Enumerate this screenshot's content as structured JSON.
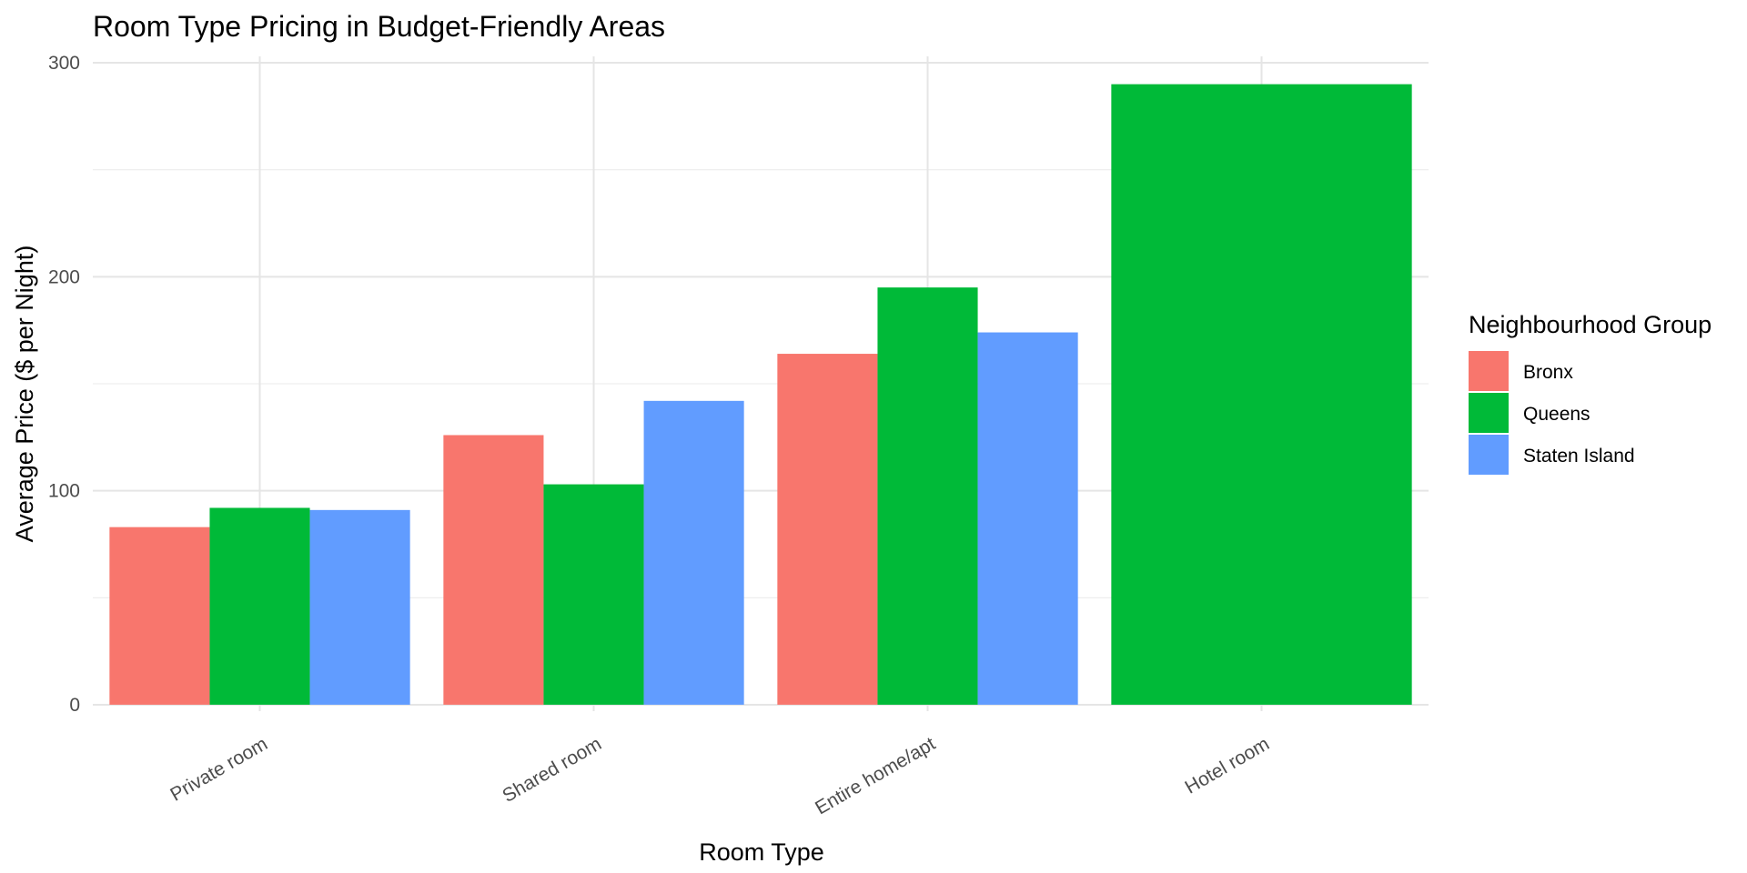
{
  "chart_data": {
    "type": "bar",
    "title": "Room Type Pricing in Budget-Friendly Areas",
    "xlabel": "Room Type",
    "ylabel": "Average Price ($ per Night)",
    "ylim": [
      -3,
      303
    ],
    "yticks": [
      0,
      100,
      200,
      300
    ],
    "categories": [
      "Private room",
      "Shared room",
      "Entire home/apt",
      "Hotel room"
    ],
    "series": [
      {
        "name": "Bronx",
        "color": "#F8766D",
        "values": [
          83,
          126,
          164,
          null
        ]
      },
      {
        "name": "Queens",
        "color": "#00BA38",
        "values": [
          92,
          103,
          195,
          290
        ]
      },
      {
        "name": "Staten Island",
        "color": "#619CFF",
        "values": [
          91,
          142,
          174,
          null
        ]
      }
    ],
    "legend": {
      "title": "Neighbourhood Group",
      "position": "right"
    },
    "grid": true
  }
}
